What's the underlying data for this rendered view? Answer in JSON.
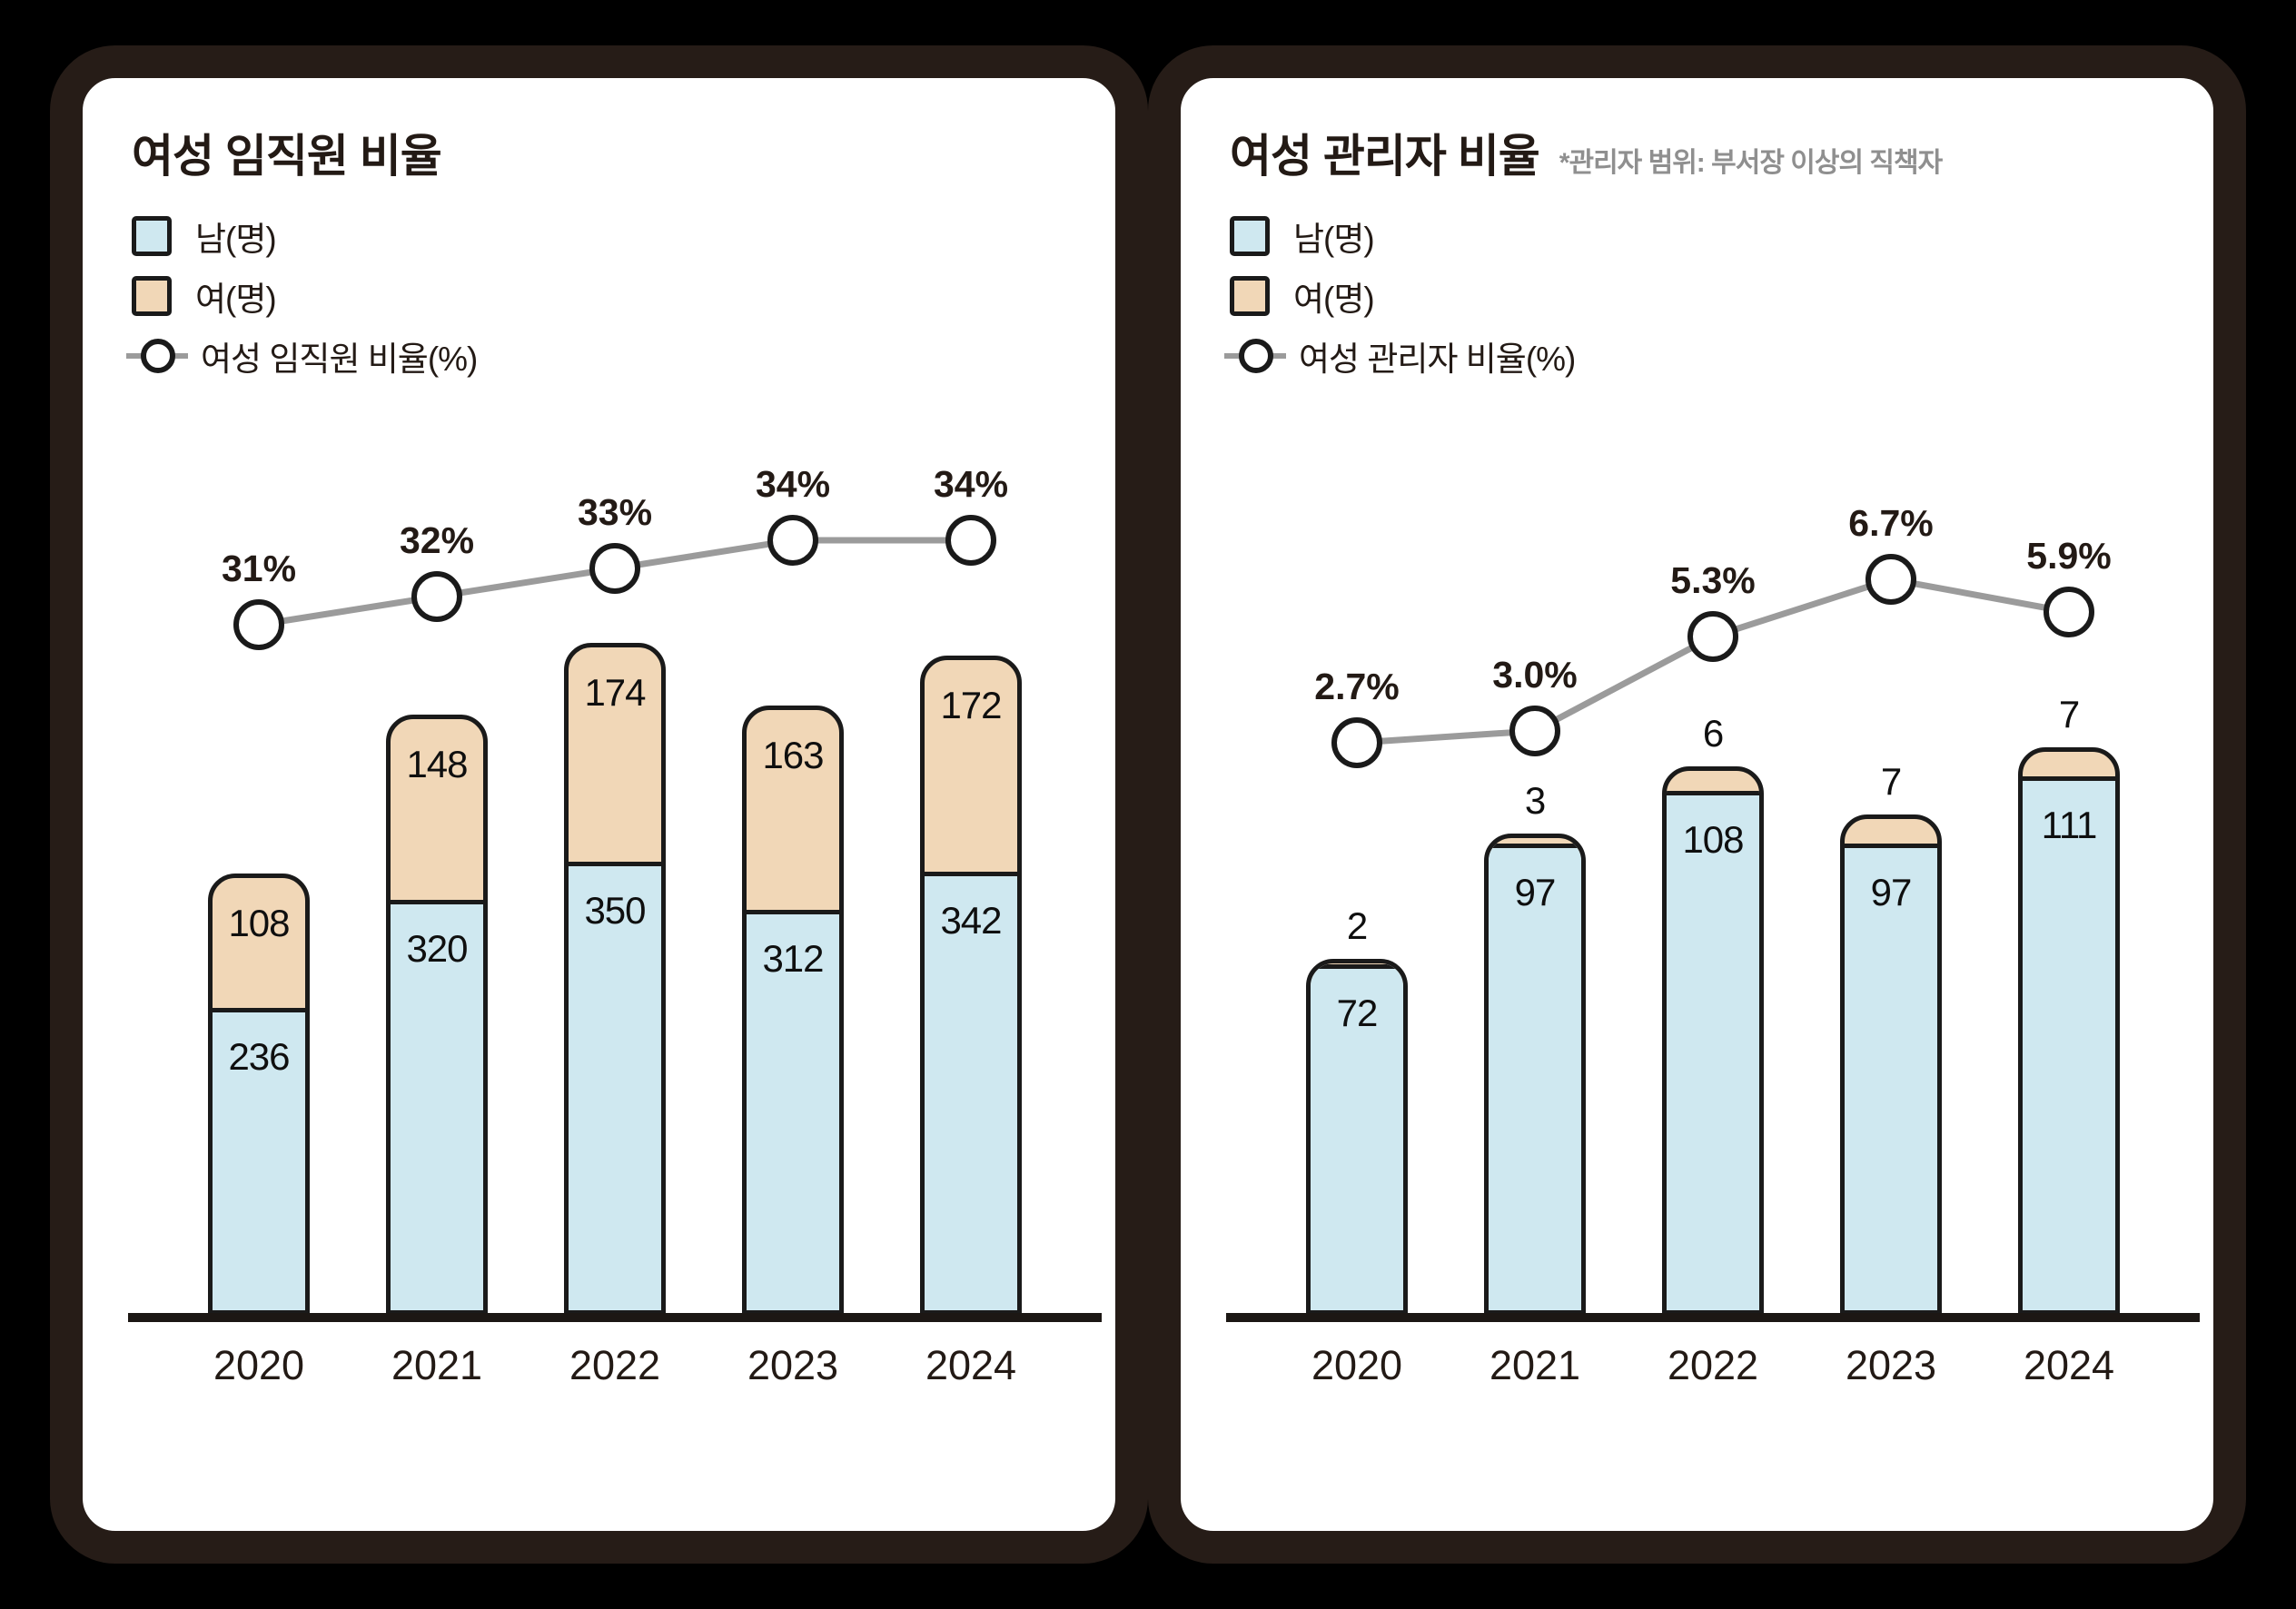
{
  "colors": {
    "background": "#000000",
    "card_background": "#ffffff",
    "frame": "#261c17",
    "male_fill": "#cfe8f0",
    "female_fill": "#f1d7b7",
    "bar_outline": "#1a1a1a",
    "ratio_line": "#9b9b9b",
    "marker_fill": "#ffffff",
    "text_dark": "#231a15",
    "note_gray": "#8f8f8f"
  },
  "chart_data": [
    {
      "type": "bar",
      "subtype": "stacked-bar-with-line",
      "title": "여성 임직원 비율",
      "note": "",
      "legend": [
        "남(명)",
        "여(명)",
        "여성 임직원 비율(%)"
      ],
      "categories": [
        "2020",
        "2021",
        "2022",
        "2023",
        "2024"
      ],
      "series": [
        {
          "name": "남(명)",
          "role": "male",
          "values": [
            236,
            320,
            350,
            312,
            342
          ]
        },
        {
          "name": "여(명)",
          "role": "female",
          "values": [
            108,
            148,
            174,
            163,
            172
          ],
          "label_position": "inside"
        },
        {
          "name": "여성 임직원 비율(%)",
          "role": "ratio_line",
          "values": [
            31,
            32,
            33,
            34,
            34
          ],
          "labels": [
            "31%",
            "32%",
            "33%",
            "34%",
            "34%"
          ]
        }
      ],
      "legend_position": "top-left",
      "grid": false
    },
    {
      "type": "bar",
      "subtype": "stacked-bar-with-line",
      "title": "여성 관리자 비율",
      "note": "*관리자 범위: 부서장 이상의 직책자",
      "legend": [
        "남(명)",
        "여(명)",
        "여성 관리자 비율(%)"
      ],
      "categories": [
        "2020",
        "2021",
        "2022",
        "2023",
        "2024"
      ],
      "series": [
        {
          "name": "남(명)",
          "role": "male",
          "values": [
            72,
            97,
            108,
            97,
            111
          ]
        },
        {
          "name": "여(명)",
          "role": "female",
          "values": [
            2,
            3,
            6,
            7,
            7
          ],
          "label_position": "above"
        },
        {
          "name": "여성 관리자 비율(%)",
          "role": "ratio_line",
          "values": [
            2.7,
            3.0,
            5.3,
            6.7,
            5.9
          ],
          "labels": [
            "2.7%",
            "3.0%",
            "5.3%",
            "6.7%",
            "5.9%"
          ]
        }
      ],
      "legend_position": "top-left",
      "grid": false
    }
  ]
}
